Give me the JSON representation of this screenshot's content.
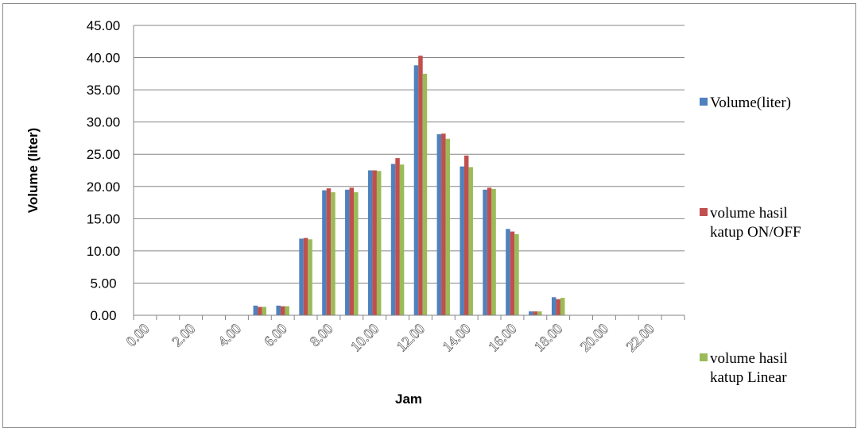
{
  "chart_data": {
    "type": "bar",
    "xlabel": "Jam",
    "ylabel": "Volume (liter)",
    "ylim": [
      0,
      45
    ],
    "y_ticks": [
      "0.00",
      "5.00",
      "10.00",
      "15.00",
      "20.00",
      "25.00",
      "30.00",
      "35.00",
      "40.00",
      "45.00"
    ],
    "x_ticks": [
      "0.00",
      "2.00",
      "4.00",
      "6.00",
      "8.00",
      "10.00",
      "12.00",
      "14.00",
      "16.00",
      "18.00",
      "20.00",
      "22.00"
    ],
    "categories": [
      "0",
      "1",
      "2",
      "3",
      "4",
      "5",
      "6",
      "7",
      "8",
      "9",
      "10",
      "11",
      "12",
      "13",
      "14",
      "15",
      "16",
      "17",
      "18",
      "19",
      "20",
      "21",
      "22",
      "23"
    ],
    "grid": true,
    "legend_position": "right",
    "series": [
      {
        "name": "Volume(liter)",
        "color": "#4f81bd",
        "values": [
          0,
          0,
          0,
          0,
          0,
          1.5,
          1.5,
          11.9,
          19.4,
          19.5,
          22.5,
          23.5,
          38.8,
          28.1,
          23.1,
          19.5,
          13.4,
          0.6,
          2.8,
          0,
          0,
          0,
          0,
          0
        ]
      },
      {
        "name": "volume hasil katup ON/OFF",
        "color": "#c0504d",
        "values": [
          0,
          0,
          0,
          0,
          0,
          1.3,
          1.4,
          12.0,
          19.7,
          19.8,
          22.5,
          24.4,
          40.3,
          28.2,
          24.8,
          19.8,
          13.0,
          0.6,
          2.5,
          0,
          0,
          0,
          0,
          0
        ]
      },
      {
        "name": "volume hasil katup Linear",
        "color": "#9bbb59",
        "values": [
          0,
          0,
          0,
          0,
          0,
          1.3,
          1.4,
          11.8,
          19.1,
          19.1,
          22.4,
          23.4,
          37.5,
          27.4,
          23.0,
          19.6,
          12.6,
          0.6,
          2.7,
          0,
          0,
          0,
          0,
          0
        ]
      }
    ],
    "legend_lines": [
      [
        "Volume(liter)"
      ],
      [
        "volume hasil",
        "katup ON/OFF"
      ],
      [
        "volume hasil",
        "katup Linear"
      ]
    ]
  }
}
